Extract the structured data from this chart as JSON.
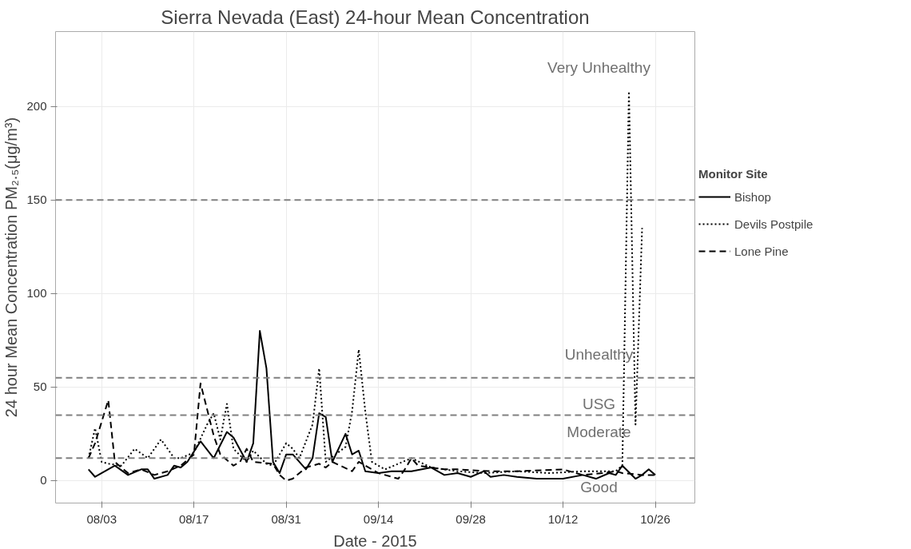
{
  "chart_data": {
    "type": "line",
    "title": "Sierra Nevada (East) 24-hour Mean Concentration",
    "xlabel": "Date - 2015",
    "ylabel": "24 hour Mean Concentration PM₂.₅(μg/m³)",
    "legend_title": "Monitor Site",
    "legend": "right",
    "grid": true,
    "xlim": [
      "2015-07-27",
      "2015-11-01"
    ],
    "ylim": [
      -12,
      240
    ],
    "xticks": [
      {
        "value": "2015-08-03",
        "label": "08/03"
      },
      {
        "value": "2015-08-17",
        "label": "08/17"
      },
      {
        "value": "2015-08-31",
        "label": "08/31"
      },
      {
        "value": "2015-09-14",
        "label": "09/14"
      },
      {
        "value": "2015-09-28",
        "label": "09/28"
      },
      {
        "value": "2015-10-12",
        "label": "10/12"
      },
      {
        "value": "2015-10-26",
        "label": "10/26"
      }
    ],
    "yticks": [
      0,
      50,
      100,
      150,
      200
    ],
    "series": [
      {
        "name": "Bishop",
        "color": "#000000",
        "line_style": "solid",
        "x": [
          "2015-08-01",
          "2015-08-02",
          "2015-08-05",
          "2015-08-07",
          "2015-08-09",
          "2015-08-10",
          "2015-08-11",
          "2015-08-13",
          "2015-08-14",
          "2015-08-15",
          "2015-08-16",
          "2015-08-18",
          "2015-08-20",
          "2015-08-22",
          "2015-08-23",
          "2015-08-25",
          "2015-08-26",
          "2015-08-27",
          "2015-08-28",
          "2015-08-29",
          "2015-08-30",
          "2015-08-31",
          "2015-09-01",
          "2015-09-03",
          "2015-09-04",
          "2015-09-05",
          "2015-09-06",
          "2015-09-07",
          "2015-09-09",
          "2015-09-10",
          "2015-09-11",
          "2015-09-12",
          "2015-09-14",
          "2015-09-16",
          "2015-09-19",
          "2015-09-22",
          "2015-09-24",
          "2015-09-26",
          "2015-09-28",
          "2015-09-30",
          "2015-10-01",
          "2015-10-03",
          "2015-10-05",
          "2015-10-08",
          "2015-10-12",
          "2015-10-15",
          "2015-10-17",
          "2015-10-19",
          "2015-10-20",
          "2015-10-21",
          "2015-10-23",
          "2015-10-24",
          "2015-10-25",
          "2015-10-26"
        ],
        "values": [
          6,
          2,
          8,
          3,
          6,
          6,
          1,
          3,
          8,
          7,
          10,
          21,
          12,
          26,
          23,
          10,
          20,
          80,
          60,
          10,
          4,
          14,
          14,
          6,
          12,
          36,
          34,
          10,
          25,
          14,
          16,
          5,
          4,
          5,
          5,
          7,
          3,
          4,
          2,
          5,
          2,
          3,
          2,
          1,
          1,
          3,
          1,
          4,
          3,
          8,
          1,
          3,
          6,
          3
        ]
      },
      {
        "name": "Devils Postpile",
        "color": "#000000",
        "line_style": "dotted",
        "x": [
          "2015-08-01",
          "2015-08-02",
          "2015-08-03",
          "2015-08-04",
          "2015-08-06",
          "2015-08-08",
          "2015-08-10",
          "2015-08-12",
          "2015-08-14",
          "2015-08-15",
          "2015-08-17",
          "2015-08-19",
          "2015-08-20",
          "2015-08-21",
          "2015-08-22",
          "2015-08-23",
          "2015-08-25",
          "2015-08-26",
          "2015-08-28",
          "2015-08-29",
          "2015-08-31",
          "2015-09-01",
          "2015-09-02",
          "2015-09-04",
          "2015-09-05",
          "2015-09-06",
          "2015-09-09",
          "2015-09-10",
          "2015-09-11",
          "2015-09-12",
          "2015-09-13",
          "2015-09-15",
          "2015-09-17",
          "2015-09-19",
          "2015-09-22",
          "2015-09-26",
          "2015-09-30",
          "2015-10-05",
          "2015-10-10",
          "2015-10-15",
          "2015-10-20",
          "2015-10-21",
          "2015-10-22",
          "2015-10-23",
          "2015-10-24"
        ],
        "values": [
          12,
          28,
          10,
          9,
          8,
          17,
          12,
          22,
          12,
          12,
          15,
          30,
          36,
          22,
          41,
          17,
          10,
          16,
          9,
          8,
          20,
          17,
          12,
          30,
          60,
          10,
          18,
          37,
          70,
          37,
          10,
          6,
          9,
          12,
          7,
          5,
          4,
          5,
          4,
          5,
          5,
          8,
          208,
          30,
          135
        ]
      },
      {
        "name": "Lone Pine",
        "color": "#000000",
        "line_style": "dashed",
        "x": [
          "2015-08-01",
          "2015-08-02",
          "2015-08-04",
          "2015-08-05",
          "2015-08-07",
          "2015-08-09",
          "2015-08-11",
          "2015-08-13",
          "2015-08-15",
          "2015-08-17",
          "2015-08-18",
          "2015-08-20",
          "2015-08-21",
          "2015-08-23",
          "2015-08-24",
          "2015-08-25",
          "2015-08-26",
          "2015-08-29",
          "2015-08-30",
          "2015-08-31",
          "2015-09-01",
          "2015-09-03",
          "2015-09-05",
          "2015-09-06",
          "2015-09-07",
          "2015-09-10",
          "2015-09-11",
          "2015-09-14",
          "2015-09-17",
          "2015-09-18",
          "2015-09-19",
          "2015-09-20",
          "2015-09-24",
          "2015-09-26",
          "2015-10-01",
          "2015-10-05",
          "2015-10-12",
          "2015-10-15",
          "2015-10-18",
          "2015-10-20",
          "2015-10-21",
          "2015-10-24",
          "2015-10-26"
        ],
        "values": [
          12,
          20,
          43,
          10,
          4,
          6,
          3,
          5,
          8,
          14,
          52,
          24,
          14,
          8,
          10,
          17,
          10,
          9,
          3,
          0,
          1,
          7,
          9,
          7,
          10,
          5,
          10,
          4,
          1,
          6,
          12,
          8,
          6,
          6,
          5,
          5,
          6,
          3,
          4,
          5,
          4,
          3,
          3
        ]
      }
    ],
    "ref_lines": [
      {
        "axis": "y",
        "value": 12,
        "color": "#808080",
        "line_style": "dashed"
      },
      {
        "axis": "y",
        "value": 35,
        "color": "#808080",
        "line_style": "dashed"
      },
      {
        "axis": "y",
        "value": 55,
        "color": "#808080",
        "line_style": "dashed"
      },
      {
        "axis": "y",
        "value": 150,
        "color": "#808080",
        "line_style": "dashed"
      }
    ],
    "annotations": [
      "Good",
      "Moderate",
      "USG",
      "Unhealthy",
      "Very Unhealthy"
    ]
  }
}
